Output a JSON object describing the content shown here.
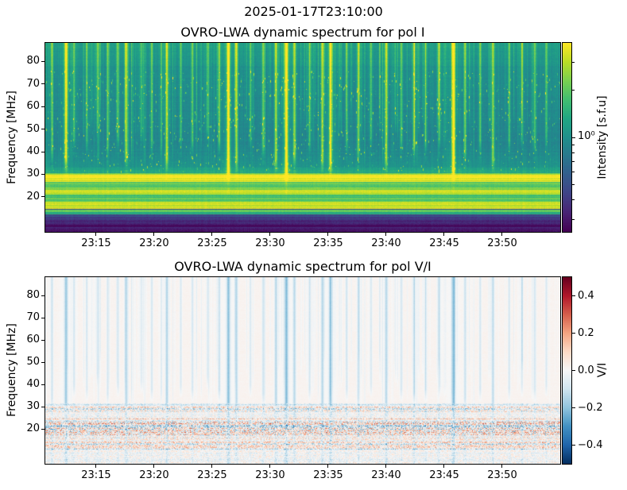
{
  "figure": {
    "suptitle": "2025-01-17T23:10:00",
    "background_color": "#ffffff",
    "text_color": "#000000"
  },
  "chart_data": [
    {
      "type": "heatmap",
      "title": "OVRO-LWA dynamic spectrum for pol I",
      "xlabel": "",
      "ylabel": "Frequency [MHz]",
      "x_tick_labels": [
        "23:15",
        "23:20",
        "23:25",
        "23:30",
        "23:35",
        "23:40",
        "23:45",
        "23:50"
      ],
      "x_tick_minutes": [
        15,
        20,
        25,
        30,
        35,
        40,
        45,
        50
      ],
      "xlim_minutes_after_2300": [
        10.62,
        55.0
      ],
      "y_ticks": [
        20,
        30,
        40,
        50,
        60,
        70,
        80
      ],
      "ylim": [
        4.5,
        88.2
      ],
      "grid": false,
      "colormap": "viridis",
      "quiet_background_level": 0.8,
      "colorbar": {
        "label": "Intensity [s.f.u]",
        "scale": "log",
        "clim": [
          0.25,
          4.0
        ],
        "major_tick_value": 1,
        "major_tick_label": "10⁰",
        "minor_ticks": [
          0.3,
          0.4,
          0.5,
          0.6,
          0.7,
          0.8,
          0.9,
          2,
          3
        ]
      },
      "background_bands": [
        [
          88.2,
          78,
          0.55,
          0.51
        ],
        [
          78,
          44,
          0.49,
          0.455
        ],
        [
          44,
          34,
          0.455,
          0.5
        ],
        [
          34,
          30.5,
          0.52,
          0.62
        ],
        [
          30.5,
          28.6,
          0.8,
          0.88
        ],
        [
          28.6,
          26.8,
          0.97,
          0.95
        ],
        [
          26.8,
          23.0,
          0.72,
          0.8
        ],
        [
          23.0,
          21.0,
          0.93,
          0.88
        ],
        [
          21.0,
          18.0,
          0.7,
          0.76
        ],
        [
          18.0,
          14.8,
          0.94,
          0.92
        ],
        [
          14.8,
          11.0,
          0.28,
          0.2
        ],
        [
          11.0,
          8.0,
          0.17,
          0.12
        ],
        [
          8.0,
          4.5,
          0.07,
          0.04
        ]
      ],
      "thin_bright_lines": [
        [
          29.3,
          0.18
        ],
        [
          13.9,
          0.45
        ],
        [
          12.7,
          0.4
        ]
      ]
    },
    {
      "type": "heatmap",
      "title": "OVRO-LWA dynamic spectrum for pol V/I",
      "xlabel": "",
      "ylabel": "Frequency [MHz]",
      "x_tick_labels": [
        "23:15",
        "23:20",
        "23:25",
        "23:30",
        "23:35",
        "23:40",
        "23:45",
        "23:50"
      ],
      "x_tick_minutes": [
        15,
        20,
        25,
        30,
        35,
        40,
        45,
        50
      ],
      "xlim_minutes_after_2300": [
        10.62,
        55.0
      ],
      "y_ticks": [
        20,
        30,
        40,
        50,
        60,
        70,
        80
      ],
      "ylim": [
        4.5,
        88.2
      ],
      "grid": false,
      "colormap": "RdBu_r",
      "base_tint": 0.015,
      "colorbar": {
        "label": "V/I",
        "scale": "linear",
        "clim": [
          -0.5,
          0.5
        ],
        "ticks": [
          0.4,
          0.2,
          0.0,
          -0.2,
          -0.4
        ],
        "tick_labels": [
          "0.4",
          "0.2",
          "0.0",
          "−0.2",
          "−0.4"
        ]
      },
      "speckle_bands": [
        [
          31.5,
          30.0,
          0.1
        ],
        [
          30.0,
          27.5,
          0.22
        ],
        [
          27.5,
          25.0,
          0.1
        ],
        [
          25.0,
          23.5,
          0.15
        ],
        [
          23.5,
          17.5,
          0.3
        ],
        [
          17.5,
          14.5,
          0.16
        ],
        [
          14.5,
          11.0,
          0.22
        ],
        [
          11.0,
          4.5,
          0.1
        ]
      ],
      "warm_lines": [
        [
          24.6,
          0.06
        ],
        [
          20.1,
          0.06
        ]
      ],
      "cool_lines": [
        [
          30.9,
          0.07
        ]
      ]
    }
  ],
  "bursts": [
    [
      11.2,
      0.55,
      34
    ],
    [
      12.4,
      0.85,
      30
    ],
    [
      13.1,
      0.5,
      40
    ],
    [
      14.2,
      0.45,
      38
    ],
    [
      15.1,
      0.35,
      45
    ],
    [
      16.0,
      0.5,
      36
    ],
    [
      16.9,
      0.45,
      40
    ],
    [
      17.6,
      0.75,
      32
    ],
    [
      18.9,
      0.4,
      42
    ],
    [
      19.8,
      0.5,
      38
    ],
    [
      21.1,
      0.8,
      30
    ],
    [
      22.3,
      0.45,
      40
    ],
    [
      23.3,
      0.5,
      38
    ],
    [
      24.6,
      0.4,
      44
    ],
    [
      25.6,
      0.5,
      38
    ],
    [
      26.4,
      0.95,
      24
    ],
    [
      27.1,
      0.7,
      30
    ],
    [
      28.3,
      0.45,
      40
    ],
    [
      29.4,
      0.55,
      36
    ],
    [
      30.5,
      0.75,
      30
    ],
    [
      31.4,
      1.0,
      23
    ],
    [
      32.1,
      0.7,
      32
    ],
    [
      33.4,
      0.5,
      38
    ],
    [
      34.5,
      0.75,
      30
    ],
    [
      35.2,
      0.85,
      28
    ],
    [
      36.6,
      0.5,
      38
    ],
    [
      37.6,
      0.6,
      34
    ],
    [
      38.7,
      0.45,
      40
    ],
    [
      40.0,
      0.75,
      30
    ],
    [
      41.3,
      0.5,
      38
    ],
    [
      42.4,
      0.55,
      36
    ],
    [
      43.4,
      0.5,
      38
    ],
    [
      44.6,
      0.45,
      40
    ],
    [
      45.8,
      0.95,
      25
    ],
    [
      46.8,
      0.6,
      34
    ],
    [
      48.1,
      0.5,
      38
    ],
    [
      49.2,
      0.7,
      30
    ],
    [
      50.6,
      0.5,
      38
    ],
    [
      51.7,
      0.45,
      40
    ],
    [
      52.8,
      0.5,
      38
    ],
    [
      53.8,
      0.45,
      40
    ]
  ],
  "colors": {
    "viridis_low": "#440154",
    "viridis_mid": "#21918c",
    "viridis_high": "#fde725",
    "rdbu_low": "#053061",
    "rdbu_mid": "#f7f7f7",
    "rdbu_high": "#67001f"
  }
}
